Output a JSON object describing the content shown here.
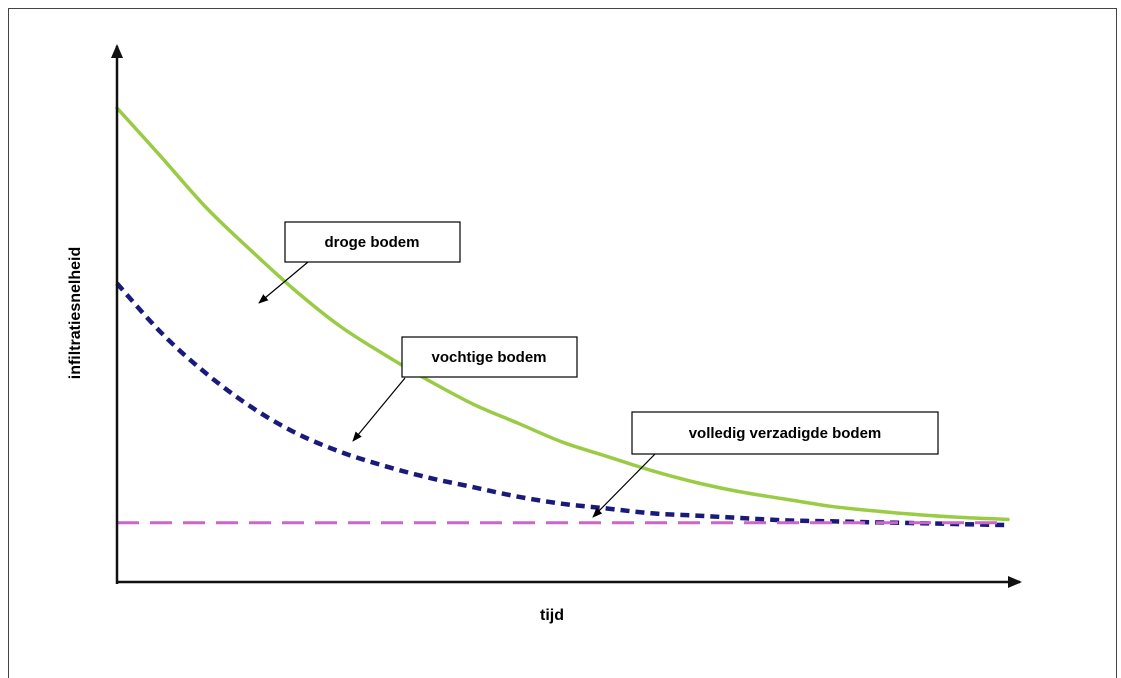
{
  "chart_data": {
    "type": "line",
    "xlabel": "tijd",
    "ylabel": "infiltratiesnelheid",
    "xlim": [
      0,
      10
    ],
    "ylim": [
      0,
      10
    ],
    "grid": false,
    "legend": "none",
    "series": [
      {
        "name": "droge bodem",
        "color": "#99cc44",
        "style": "solid",
        "x": [
          0,
          0.5,
          1,
          1.5,
          2,
          2.5,
          3,
          3.5,
          4,
          4.5,
          5,
          5.5,
          6,
          6.5,
          7,
          7.5,
          8,
          8.5,
          9,
          9.5,
          10
        ],
        "values": [
          10.0,
          8.96,
          7.9,
          7.0,
          6.15,
          5.4,
          4.8,
          4.25,
          3.75,
          3.35,
          2.95,
          2.65,
          2.35,
          2.1,
          1.9,
          1.75,
          1.6,
          1.5,
          1.42,
          1.36,
          1.32
        ]
      },
      {
        "name": "vochtige bodem",
        "color": "#1a1a7a",
        "style": "dotted",
        "x": [
          0,
          0.5,
          1,
          1.5,
          2,
          2.5,
          3,
          3.5,
          4,
          4.5,
          5,
          5.5,
          6,
          6.5,
          7,
          7.5,
          8,
          8.5,
          9,
          9.5,
          10
        ],
        "values": [
          6.3,
          5.25,
          4.4,
          3.7,
          3.15,
          2.75,
          2.45,
          2.2,
          2.0,
          1.8,
          1.65,
          1.55,
          1.45,
          1.4,
          1.35,
          1.3,
          1.28,
          1.26,
          1.24,
          1.22,
          1.2
        ]
      },
      {
        "name": "volledig verzadigde bodem",
        "color": "#cc66cc",
        "style": "dashed",
        "x": [
          0,
          10
        ],
        "values": [
          1.25,
          1.25
        ]
      }
    ],
    "annotations": [
      {
        "label": "droge bodem"
      },
      {
        "label": "vochtige bodem"
      },
      {
        "label": "volledig verzadigde bodem"
      }
    ]
  }
}
